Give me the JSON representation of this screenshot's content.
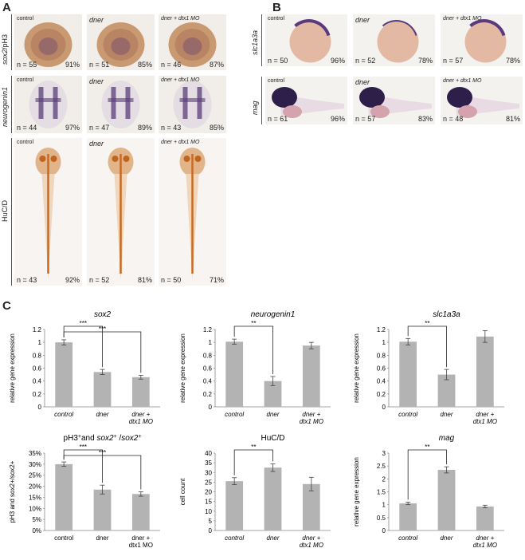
{
  "figure": {
    "panel_a": "A",
    "panel_b": "B",
    "panel_c": "C"
  },
  "panel_a": {
    "rows": [
      {
        "label_parts": [
          {
            "t": "sox2",
            "i": true
          },
          {
            "t": "/pH3",
            "i": false
          }
        ],
        "tiles": [
          {
            "cond": "control",
            "n": "n = 55",
            "pct": "91%"
          },
          {
            "cond": "dner",
            "n": "n = 51",
            "pct": "85%"
          },
          {
            "cond": "dner + dtx1 MO",
            "n": "n = 46",
            "pct": "87%"
          }
        ]
      },
      {
        "label_parts": [
          {
            "t": "neurogenin1",
            "i": true
          }
        ],
        "tiles": [
          {
            "cond": "control",
            "n": "n = 44",
            "pct": "97%"
          },
          {
            "cond": "dner",
            "n": "n = 47",
            "pct": "89%"
          },
          {
            "cond": "dner + dtx1 MO",
            "n": "n = 43",
            "pct": "85%"
          }
        ]
      },
      {
        "label_parts": [
          {
            "t": "HuC/D",
            "i": false
          }
        ],
        "tiles": [
          {
            "cond": "control",
            "n": "n = 43",
            "pct": "92%"
          },
          {
            "cond": "dner",
            "n": "n = 52",
            "pct": "81%"
          },
          {
            "cond": "dner + dtx1 MO",
            "n": "n = 50",
            "pct": "71%"
          }
        ]
      }
    ]
  },
  "panel_b": {
    "rows": [
      {
        "label": "slc1a3a",
        "tiles": [
          {
            "cond": "control",
            "n": "n = 50",
            "pct": "96%"
          },
          {
            "cond": "dner",
            "n": "n = 52",
            "pct": "78%"
          },
          {
            "cond": "dner + dtx1 MO",
            "n": "n = 57",
            "pct": "78%"
          }
        ]
      },
      {
        "label": "mag",
        "tiles": [
          {
            "cond": "control",
            "n": "n = 61",
            "pct": "96%"
          },
          {
            "cond": "dner",
            "n": "n = 57",
            "pct": "83%"
          },
          {
            "cond": "dner + dtx1 MO",
            "n": "n = 48",
            "pct": "81%"
          }
        ]
      }
    ]
  },
  "chart_data": [
    {
      "type": "bar",
      "title": "sox2",
      "title_italic": true,
      "ylabel": "relative gene expression",
      "categories": [
        "control",
        "dner",
        "dner + dtx1 MO"
      ],
      "values": [
        1.0,
        0.54,
        0.46
      ],
      "errors": [
        0.04,
        0.04,
        0.03
      ],
      "ylim": [
        0,
        1.2
      ],
      "yticks": [
        "0",
        "0.2",
        "0.4",
        "0.6",
        "0.8",
        "1",
        "1.2"
      ],
      "xticks_italic": true,
      "sig": [
        {
          "from": 0,
          "to": 1,
          "label": "***"
        },
        {
          "from": 0,
          "to": 2,
          "label": "***"
        }
      ]
    },
    {
      "type": "bar",
      "title": "neurogenin1",
      "title_italic": true,
      "ylabel": "relative gene expression",
      "categories": [
        "control",
        "dner",
        "dner + dtx1 MO"
      ],
      "values": [
        1.01,
        0.4,
        0.95
      ],
      "errors": [
        0.04,
        0.07,
        0.05
      ],
      "ylim": [
        0,
        1.2
      ],
      "yticks": [
        "0",
        "0.2",
        "0.4",
        "0.6",
        "0.8",
        "1",
        "1.2"
      ],
      "xticks_italic": true,
      "sig": [
        {
          "from": 0,
          "to": 1,
          "label": "**"
        }
      ]
    },
    {
      "type": "bar",
      "title": "slc1a3a",
      "title_italic": true,
      "ylabel": "relative gene expression",
      "categories": [
        "control",
        "dner",
        "dner + dtx1 MO"
      ],
      "values": [
        1.01,
        0.5,
        1.09
      ],
      "errors": [
        0.05,
        0.08,
        0.09
      ],
      "ylim": [
        0,
        1.2
      ],
      "yticks": [
        "0",
        "0.2",
        "0.4",
        "0.6",
        "0.8",
        "1",
        "1.2"
      ],
      "xticks_italic": true,
      "sig": [
        {
          "from": 0,
          "to": 1,
          "label": "**"
        }
      ]
    },
    {
      "type": "bar",
      "title_parts": [
        {
          "t": "pH3",
          "i": false
        },
        {
          "t": "+",
          "i": false,
          "sup": true
        },
        {
          "t": "and ",
          "i": false
        },
        {
          "t": "sox2",
          "i": true
        },
        {
          "t": "+",
          "i": false,
          "sup": true
        },
        {
          "t": " /",
          "i": false
        },
        {
          "t": "sox2",
          "i": true
        },
        {
          "t": "+",
          "i": false,
          "sup": true
        }
      ],
      "ylabel": "pH3 and sox2+/sox2+",
      "categories": [
        "control",
        "dner",
        "dner + dtx1 MO"
      ],
      "values": [
        0.3,
        0.185,
        0.165
      ],
      "errors": [
        0.01,
        0.02,
        0.01
      ],
      "ylim": [
        0,
        0.35
      ],
      "yticks": [
        "0%",
        "5%",
        "10%",
        "15%",
        "20%",
        "25%",
        "30%",
        "35%"
      ],
      "xticks_italic": false,
      "sig": [
        {
          "from": 0,
          "to": 1,
          "label": "***"
        },
        {
          "from": 0,
          "to": 2,
          "label": "***"
        }
      ]
    },
    {
      "type": "bar",
      "title": "HuC/D",
      "title_italic": false,
      "ylabel": "cell count",
      "categories": [
        "control",
        "dner",
        "dner + dtx1 MO"
      ],
      "values": [
        25.5,
        32.5,
        24.0
      ],
      "errors": [
        1.8,
        2.0,
        3.5
      ],
      "ylim": [
        0,
        40
      ],
      "yticks": [
        "0",
        "5",
        "10",
        "15",
        "20",
        "25",
        "30",
        "35",
        "40"
      ],
      "xticks_italic": true,
      "sig": [
        {
          "from": 0,
          "to": 1,
          "label": "**"
        }
      ]
    },
    {
      "type": "bar",
      "title": "mag",
      "title_italic": true,
      "ylabel": "relative gene expression",
      "categories": [
        "control",
        "dner",
        "dner + dtx1 MO"
      ],
      "values": [
        1.05,
        2.35,
        0.93
      ],
      "errors": [
        0.05,
        0.12,
        0.05
      ],
      "ylim": [
        0,
        3
      ],
      "yticks": [
        "0",
        "0.5",
        "1",
        "1.5",
        "2",
        "2.5",
        "3"
      ],
      "xticks_italic": true,
      "sig": [
        {
          "from": 0,
          "to": 1,
          "label": "**"
        }
      ]
    }
  ]
}
